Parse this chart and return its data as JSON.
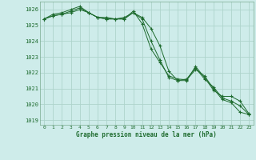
{
  "title": "Graphe pression niveau de la mer (hPa)",
  "background_color": "#ceecea",
  "plot_bg_color": "#ceecea",
  "grid_color": "#aed4cc",
  "line_color": "#1e6b2e",
  "ylim": [
    1018.7,
    1026.5
  ],
  "yticks": [
    1019,
    1020,
    1021,
    1022,
    1023,
    1024,
    1025,
    1026
  ],
  "xlim": [
    -0.5,
    23.5
  ],
  "xticks": [
    0,
    1,
    2,
    3,
    4,
    5,
    6,
    7,
    8,
    9,
    10,
    11,
    12,
    13,
    14,
    15,
    16,
    17,
    18,
    19,
    20,
    21,
    22,
    23
  ],
  "series": [
    [
      1025.4,
      1025.6,
      1025.7,
      1025.8,
      1026.0,
      1025.8,
      1025.5,
      1025.4,
      1025.4,
      1025.4,
      1025.8,
      1025.4,
      1024.0,
      1022.8,
      1021.7,
      1021.5,
      1021.6,
      1022.3,
      1021.6,
      1021.1,
      1020.4,
      1020.2,
      1019.9,
      1019.35
    ],
    [
      1025.4,
      1025.7,
      1025.8,
      1026.0,
      1026.2,
      1025.8,
      1025.5,
      1025.4,
      1025.4,
      1025.5,
      1025.8,
      1025.5,
      1024.8,
      1023.7,
      1022.1,
      1021.5,
      1021.5,
      1022.4,
      1021.7,
      1020.9,
      1020.5,
      1020.5,
      1020.2,
      1019.4
    ],
    [
      1025.4,
      1025.6,
      1025.7,
      1025.9,
      1026.1,
      1025.8,
      1025.5,
      1025.5,
      1025.4,
      1025.4,
      1025.9,
      1025.1,
      1023.5,
      1022.65,
      1021.8,
      1021.6,
      1021.55,
      1022.2,
      1021.8,
      1021.0,
      1020.3,
      1020.1,
      1019.5,
      1019.35
    ]
  ]
}
